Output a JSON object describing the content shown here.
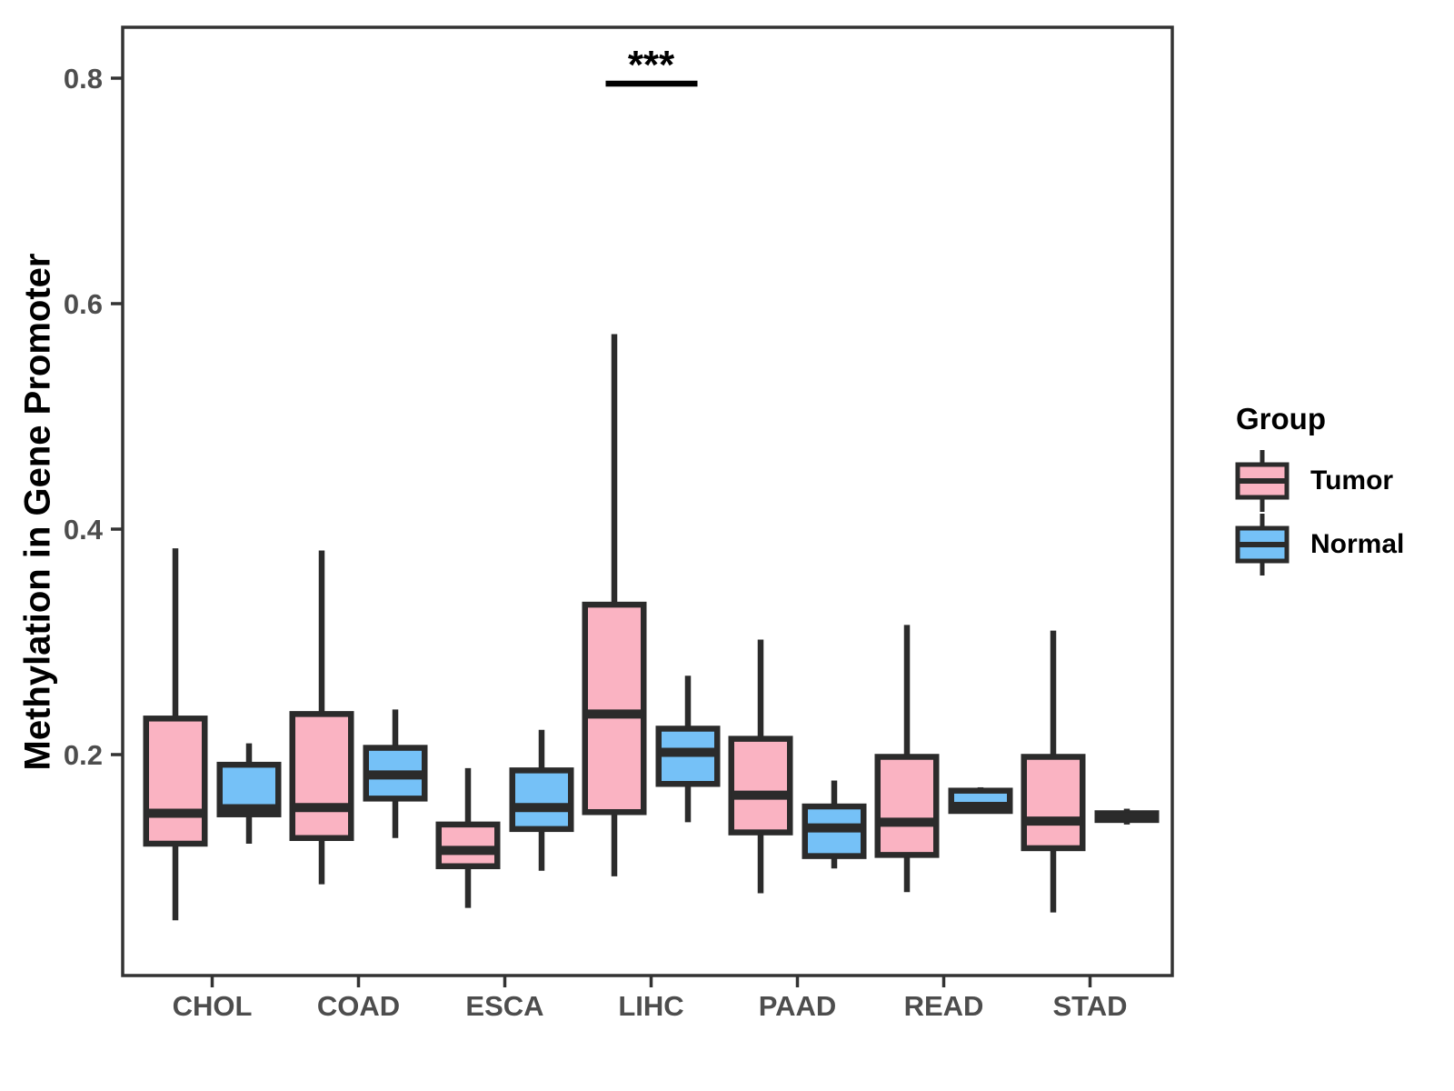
{
  "figure": {
    "y_axis": {
      "title": "Methylation in Gene Promoter",
      "ticks": [
        "0.8",
        "0.6",
        "0.4",
        "0.2"
      ],
      "tick_values": [
        0.8,
        0.6,
        0.4,
        0.2
      ]
    },
    "x_axis": {
      "categories": [
        "CHOL",
        "COAD",
        "ESCA",
        "LIHC",
        "PAAD",
        "READ",
        "STAD"
      ]
    },
    "legend": {
      "title": "Group",
      "entries": [
        {
          "label": "Tumor",
          "color": "#FAB3C2"
        },
        {
          "label": "Normal",
          "color": "#75C1F7"
        }
      ]
    },
    "annotation": {
      "label": "***",
      "over_group": "LIHC"
    }
  },
  "chart_data": {
    "type": "boxplot",
    "title": "",
    "xlabel": "",
    "ylabel": "Methylation in Gene Promoter",
    "ylim": [
      0.0,
      0.85
    ],
    "grid": "off",
    "legend_position": "right",
    "categories": [
      "CHOL",
      "COAD",
      "ESCA",
      "LIHC",
      "PAAD",
      "READ",
      "STAD"
    ],
    "series": [
      {
        "name": "Tumor",
        "color": "#FAB3C2",
        "boxes": [
          {
            "category": "CHOL",
            "min": 0.053,
            "q1": 0.121,
            "median": 0.148,
            "q3": 0.232,
            "max": 0.383
          },
          {
            "category": "COAD",
            "min": 0.085,
            "q1": 0.126,
            "median": 0.153,
            "q3": 0.236,
            "max": 0.381
          },
          {
            "category": "ESCA",
            "min": 0.064,
            "q1": 0.101,
            "median": 0.115,
            "q3": 0.138,
            "max": 0.188
          },
          {
            "category": "LIHC",
            "min": 0.092,
            "q1": 0.149,
            "median": 0.236,
            "q3": 0.333,
            "max": 0.573
          },
          {
            "category": "PAAD",
            "min": 0.077,
            "q1": 0.131,
            "median": 0.164,
            "q3": 0.214,
            "max": 0.302
          },
          {
            "category": "READ",
            "min": 0.078,
            "q1": 0.111,
            "median": 0.14,
            "q3": 0.198,
            "max": 0.315
          },
          {
            "category": "STAD",
            "min": 0.06,
            "q1": 0.117,
            "median": 0.141,
            "q3": 0.198,
            "max": 0.31
          }
        ]
      },
      {
        "name": "Normal",
        "color": "#75C1F7",
        "boxes": [
          {
            "category": "CHOL",
            "min": 0.121,
            "q1": 0.147,
            "median": 0.152,
            "q3": 0.191,
            "max": 0.21
          },
          {
            "category": "COAD",
            "min": 0.126,
            "q1": 0.161,
            "median": 0.182,
            "q3": 0.206,
            "max": 0.24
          },
          {
            "category": "ESCA",
            "min": 0.097,
            "q1": 0.134,
            "median": 0.153,
            "q3": 0.186,
            "max": 0.222
          },
          {
            "category": "LIHC",
            "min": 0.14,
            "q1": 0.174,
            "median": 0.202,
            "q3": 0.223,
            "max": 0.27
          },
          {
            "category": "PAAD",
            "min": 0.099,
            "q1": 0.11,
            "median": 0.135,
            "q3": 0.154,
            "max": 0.177
          },
          {
            "category": "READ",
            "min": 0.148,
            "q1": 0.15,
            "median": 0.154,
            "q3": 0.168,
            "max": 0.171
          },
          {
            "category": "STAD",
            "min": 0.138,
            "q1": 0.142,
            "median": 0.145,
            "q3": 0.148,
            "max": 0.152
          }
        ]
      }
    ],
    "significance": [
      {
        "group": "LIHC",
        "label": "***"
      }
    ]
  },
  "style_colors": {
    "box_stroke": "#2B2B2B",
    "panel_border": "#333333",
    "tick_label": "#4D4D4D",
    "axis_title": "#000000"
  }
}
